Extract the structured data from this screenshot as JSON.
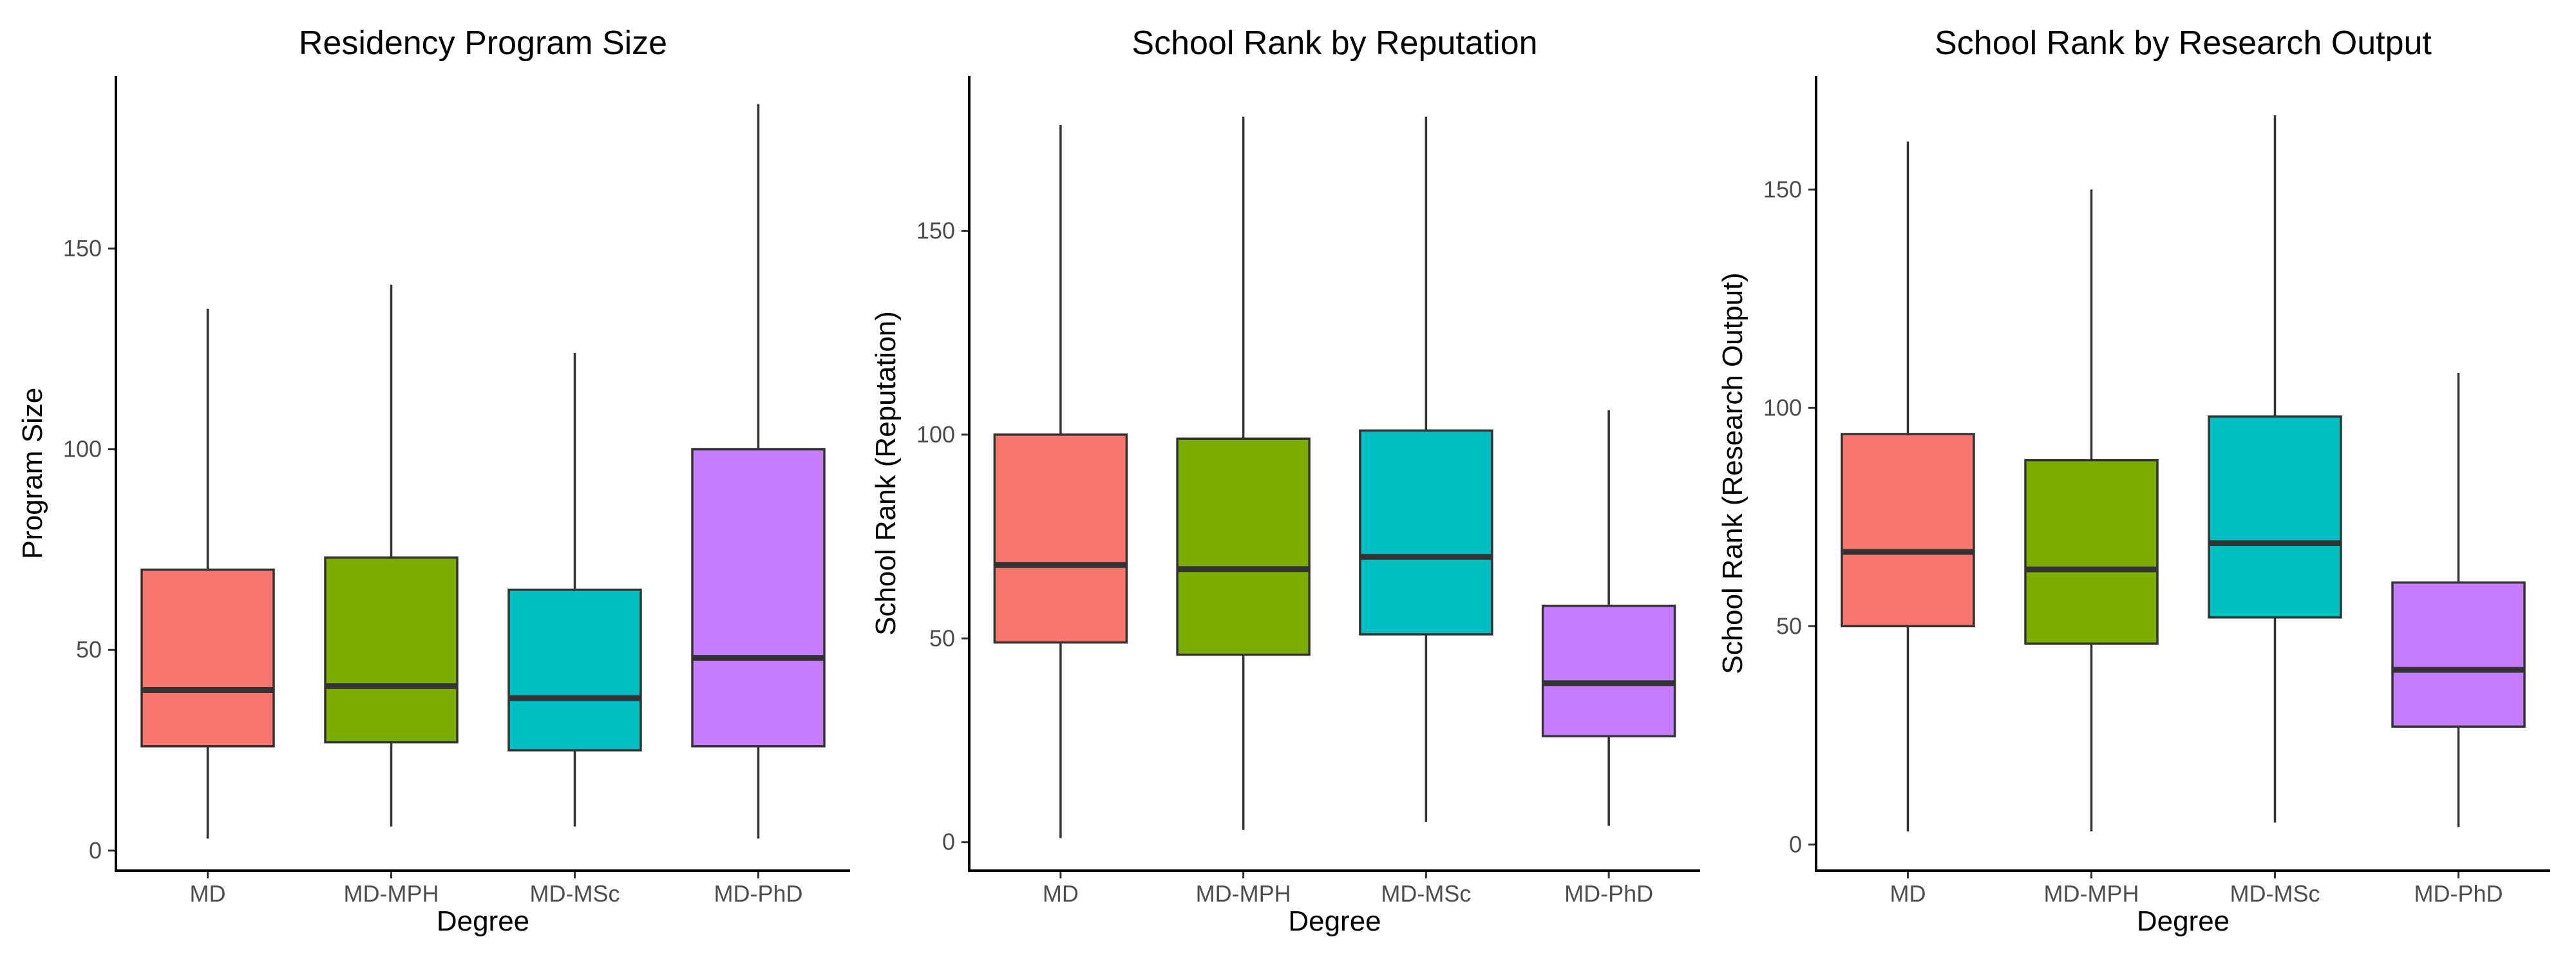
{
  "chart_data": [
    {
      "type": "box",
      "title": "Residency Program Size",
      "xlabel": "Degree",
      "ylabel": "Program Size",
      "categories": [
        "MD",
        "MD-MPH",
        "MD-MSc",
        "MD-PhD"
      ],
      "ylim": [
        -5,
        193
      ],
      "yticks": [
        0,
        50,
        100,
        150
      ],
      "grid": false,
      "legend": "none",
      "boxes": [
        {
          "category": "MD",
          "min": 3,
          "q1": 26,
          "median": 40,
          "q3": 70,
          "max": 135
        },
        {
          "category": "MD-MPH",
          "min": 6,
          "q1": 27,
          "median": 41,
          "q3": 73,
          "max": 141
        },
        {
          "category": "MD-MSc",
          "min": 6,
          "q1": 25,
          "median": 38,
          "q3": 65,
          "max": 124
        },
        {
          "category": "MD-PhD",
          "min": 3,
          "q1": 26,
          "median": 48,
          "q3": 100,
          "max": 186
        }
      ]
    },
    {
      "type": "box",
      "title": "School Rank by Reputation",
      "xlabel": "Degree",
      "ylabel": "School Rank (Reputation)",
      "categories": [
        "MD",
        "MD-MPH",
        "MD-MSc",
        "MD-PhD"
      ],
      "ylim": [
        -7,
        188
      ],
      "yticks": [
        0,
        50,
        100,
        150
      ],
      "grid": false,
      "legend": "none",
      "boxes": [
        {
          "category": "MD",
          "min": 1,
          "q1": 49,
          "median": 68,
          "q3": 100,
          "max": 176
        },
        {
          "category": "MD-MPH",
          "min": 3,
          "q1": 46,
          "median": 67,
          "q3": 99,
          "max": 178
        },
        {
          "category": "MD-MSc",
          "min": 5,
          "q1": 51,
          "median": 70,
          "q3": 101,
          "max": 178
        },
        {
          "category": "MD-PhD",
          "min": 4,
          "q1": 26,
          "median": 39,
          "q3": 58,
          "max": 106
        }
      ]
    },
    {
      "type": "box",
      "title": "School Rank by Research Output",
      "xlabel": "Degree",
      "ylabel": "School Rank (Research Output)",
      "categories": [
        "MD",
        "MD-MPH",
        "MD-MSc",
        "MD-PhD"
      ],
      "ylim": [
        -6,
        176
      ],
      "yticks": [
        0,
        50,
        100,
        150
      ],
      "grid": false,
      "legend": "none",
      "boxes": [
        {
          "category": "MD",
          "min": 3,
          "q1": 50,
          "median": 67,
          "q3": 94,
          "max": 161
        },
        {
          "category": "MD-MPH",
          "min": 3,
          "q1": 46,
          "median": 63,
          "q3": 88,
          "max": 150
        },
        {
          "category": "MD-MSc",
          "min": 5,
          "q1": 52,
          "median": 69,
          "q3": 98,
          "max": 167
        },
        {
          "category": "MD-PhD",
          "min": 4,
          "q1": 27,
          "median": 40,
          "q3": 60,
          "max": 108
        }
      ]
    }
  ],
  "colors": {
    "MD": "#f8766d",
    "MD-MPH": "#7cae00",
    "MD-MSc": "#00bfc4",
    "MD-PhD": "#c77cff",
    "outline": "#333333",
    "axis": "#000000",
    "tick_text": "#4d4d4d"
  }
}
